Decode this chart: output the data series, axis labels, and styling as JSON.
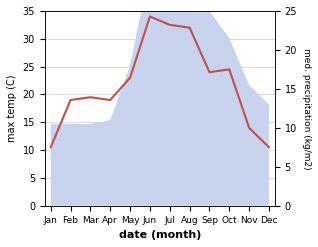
{
  "months": [
    "Jan",
    "Feb",
    "Mar",
    "Apr",
    "May",
    "Jun",
    "Jul",
    "Aug",
    "Sep",
    "Oct",
    "Nov",
    "Dec"
  ],
  "temp": [
    10.5,
    19.0,
    19.5,
    19.0,
    23.0,
    34.0,
    32.5,
    32.0,
    24.0,
    24.5,
    14.0,
    10.5
  ],
  "precip": [
    10.5,
    10.5,
    10.5,
    11.0,
    18.0,
    30.5,
    32.0,
    32.0,
    25.0,
    21.5,
    15.5,
    13.0
  ],
  "temp_color": "#c0504d",
  "precip_fill_color": "#c8d4ee",
  "temp_ylim": [
    0,
    35
  ],
  "precip_ylim": [
    0,
    25
  ],
  "left_yticks": [
    0,
    5,
    10,
    15,
    20,
    25,
    30,
    35
  ],
  "right_yticks": [
    0,
    5,
    10,
    15,
    20,
    25
  ],
  "xlabel": "date (month)",
  "ylabel_left": "max temp (C)",
  "ylabel_right": "med. precipitation (kg/m2)",
  "background_color": "#ffffff"
}
